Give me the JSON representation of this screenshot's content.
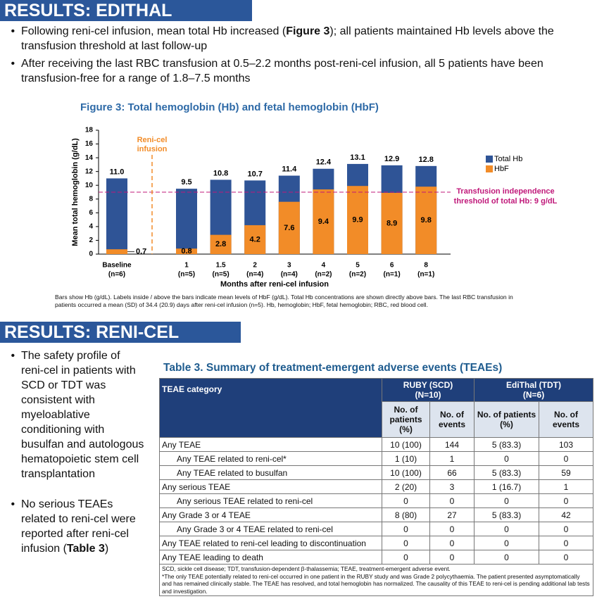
{
  "efficacy": {
    "title": "RESULTS: EDITHAL EFFICACY",
    "bullets": [
      [
        "Following reni-cel infusion, mean total Hb increased (",
        "Figure 3",
        "); all patients maintained Hb levels above the transfusion threshold at last follow-up"
      ],
      [
        "After receiving the last RBC transfusion at 0.5–2.2 months post-reni-cel infusion, all 5 patients have been transfusion-free for a range of 1.8–7.5 months"
      ]
    ],
    "figure_title": "Figure 3: Total hemoglobin (Hb) and fetal hemoglobin (HbF)",
    "figure_note": "Bars show Hb (g/dL). Labels inside / above the bars indicate mean levels of HbF (g/dL). Total Hb concentrations are shown directly above bars. The last RBC transfusion in patients occurred a mean (SD) of 34.4 (20.9) days after reni-cel infusion (n=5). Hb, hemoglobin; HbF, fetal hemoglobin; RBC, red blood cell."
  },
  "chart_data": {
    "type": "bar",
    "x_label": "Months after reni-cel infusion",
    "y_label": "Mean total hemoglobin (g/dL)",
    "categories": [
      "Baseline",
      "1",
      "1.5",
      "2",
      "3",
      "4",
      "5",
      "6",
      "8"
    ],
    "category_sublabels": [
      "(n=6)",
      "(n=5)",
      "(n=5)",
      "(n=4)",
      "(n=4)",
      "(n=2)",
      "(n=2)",
      "(n=1)",
      "(n=1)"
    ],
    "series": [
      {
        "name": "HbF",
        "color": "#f28c28",
        "values": [
          0.7,
          0.8,
          2.8,
          4.2,
          7.6,
          9.4,
          9.9,
          8.9,
          9.8
        ]
      },
      {
        "name": "Total Hb",
        "color": "#2f5496",
        "values": [
          11.0,
          9.5,
          10.8,
          10.7,
          11.4,
          12.4,
          13.1,
          12.9,
          12.8
        ],
        "value_labels": [
          "11.0",
          "9.5",
          "10.8",
          "10.7",
          "11.4",
          "12.4",
          "13.1",
          "12.9",
          "12.8"
        ]
      }
    ],
    "ylim": [
      0,
      18
    ],
    "yticks": [
      0,
      2,
      4,
      6,
      8,
      10,
      12,
      14,
      16,
      18
    ],
    "threshold": 9,
    "threshold_color": "#c0197a",
    "threshold_label": [
      "Transfusion independence",
      "threshold of total Hb: 9 g/dL"
    ],
    "infusion_label": [
      "Reni-cel",
      "infusion"
    ],
    "infusion_color": "#f28c28"
  },
  "safety": {
    "title": "RESULTS: RENI-CEL SAFETY",
    "bullets": [
      [
        "The safety profile of reni-cel in patients with SCD or TDT was consistent with myeloablative conditioning with busulfan and autologous hematopoietic stem cell transplantation"
      ],
      [
        "No serious TEAEs related to reni-cel were reported after reni-cel infusion (",
        "Table 3",
        ")"
      ]
    ]
  },
  "table": {
    "title": "Table 3. Summary of treatment-emergent adverse events (TEAEs)",
    "header": [
      "TEAE category",
      "RUBY (SCD)",
      "(N=10)",
      "EdiThal (TDT)",
      "(N=6)"
    ],
    "subheader": [
      "No. of patients (%)",
      "No. of events",
      "No. of patients (%)",
      "No. of events"
    ],
    "rows": [
      {
        "indent": false,
        "cells": [
          "Any TEAE",
          "10 (100)",
          "144",
          "5 (83.3)",
          "103"
        ]
      },
      {
        "indent": true,
        "cells": [
          "Any TEAE related to reni-cel*",
          "1 (10)",
          "1",
          "0",
          "0"
        ]
      },
      {
        "indent": true,
        "cells": [
          "Any TEAE related to busulfan",
          "10 (100)",
          "66",
          "5 (83.3)",
          "59"
        ]
      },
      {
        "indent": false,
        "cells": [
          "Any serious TEAE",
          "2 (20)",
          "3",
          "1 (16.7)",
          "1"
        ]
      },
      {
        "indent": true,
        "cells": [
          "Any serious TEAE related to reni-cel",
          "0",
          "0",
          "0",
          "0"
        ]
      },
      {
        "indent": false,
        "cells": [
          "Any Grade 3 or 4 TEAE",
          "8 (80)",
          "27",
          "5 (83.3)",
          "42"
        ]
      },
      {
        "indent": true,
        "cells": [
          "Any Grade 3 or 4 TEAE related to reni-cel",
          "0",
          "0",
          "0",
          "0"
        ]
      },
      {
        "indent": false,
        "cells": [
          "Any TEAE related to reni-cel leading to discontinuation",
          "0",
          "0",
          "0",
          "0"
        ]
      },
      {
        "indent": false,
        "cells": [
          "Any TEAE leading to death",
          "0",
          "0",
          "0",
          "0"
        ]
      }
    ],
    "footnotes": [
      "SCD, sickle cell disease; TDT, transfusion-dependent β-thalassemia; TEAE, treatment-emergent adverse event.",
      "*The only TEAE potentially related to reni-cel occurred in one patient in the RUBY study and was Grade 2 polycythaemia. The patient presented asymptomatically and has remained clinically stable. The TEAE has resolved, and total hemoglobin has normalized. The causality of this TEAE to reni-cel is pending additional lab tests and investigation."
    ]
  }
}
